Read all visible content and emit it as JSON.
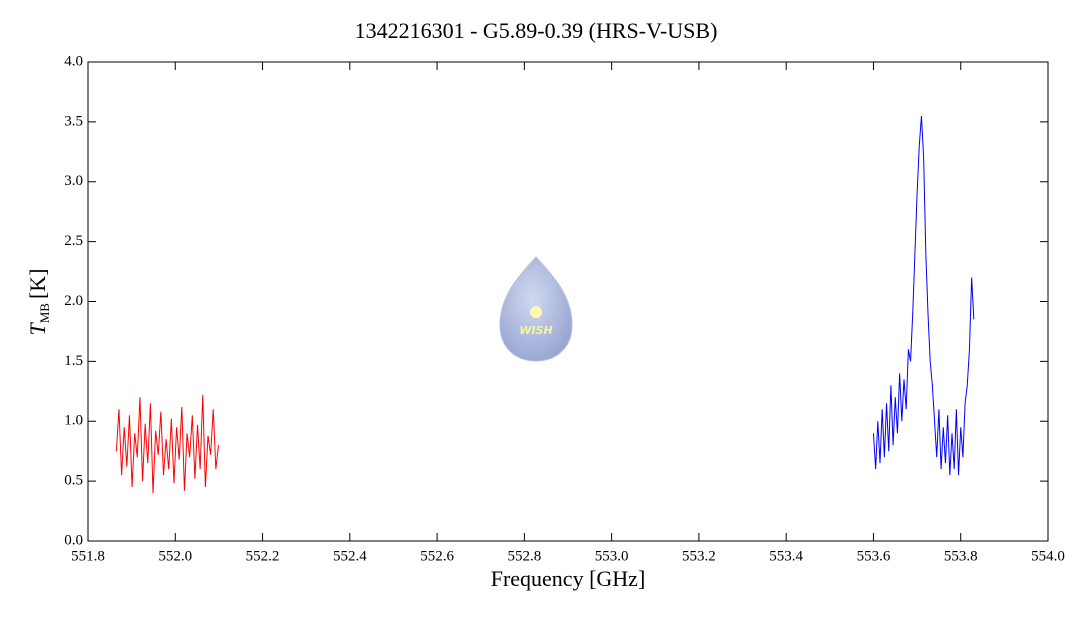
{
  "chart_data": {
    "type": "line",
    "title": "1342216301 - G5.89-0.39 (HRS-V-USB)",
    "xlabel": "Frequency [GHz]",
    "ylabel": {
      "symbol": "T",
      "sub": "MB",
      "unit": "[K]"
    },
    "logo_text": "WISH",
    "xlim": [
      551.8,
      554.0
    ],
    "ylim": [
      0,
      4
    ],
    "xticks": [
      551.8,
      {
        "value": 552,
        "label": "552.0"
      },
      552.2,
      552.4,
      552.6,
      552.8,
      {
        "value": 553,
        "label": "553.0"
      },
      553.2,
      553.4,
      553.6,
      553.8,
      {
        "value": 554,
        "label": "554.0"
      }
    ],
    "yticks": [
      {
        "value": 0,
        "label": "0.0"
      },
      0.5,
      {
        "value": 1,
        "label": "1.0"
      },
      1.5,
      {
        "value": 2,
        "label": "2.0"
      },
      2.5,
      {
        "value": 3,
        "label": "3.0"
      },
      3.5,
      {
        "value": 4,
        "label": "4.0"
      }
    ],
    "series": [
      {
        "color": "#ff0000",
        "x": [
          551.865,
          551.871,
          551.877,
          551.883,
          551.889,
          551.895,
          551.901,
          551.907,
          551.913,
          551.919,
          551.925,
          551.931,
          551.937,
          551.943,
          551.949,
          551.955,
          551.961,
          551.967,
          551.973,
          551.979,
          551.985,
          551.991,
          551.997,
          552.003,
          552.009,
          552.015,
          552.021,
          552.027,
          552.033,
          552.039,
          552.045,
          552.051,
          552.057,
          552.063,
          552.069,
          552.075,
          552.081,
          552.087,
          552.093,
          552.099
        ],
        "values": [
          0.75,
          1.1,
          0.55,
          0.95,
          0.62,
          1.05,
          0.45,
          0.9,
          0.7,
          1.2,
          0.5,
          0.98,
          0.65,
          1.15,
          0.4,
          0.92,
          0.72,
          1.08,
          0.55,
          0.85,
          0.6,
          1.02,
          0.48,
          0.95,
          0.68,
          1.12,
          0.42,
          0.9,
          0.7,
          1.05,
          0.52,
          0.97,
          0.6,
          1.22,
          0.45,
          0.88,
          0.72,
          1.1,
          0.6,
          0.8
        ]
      },
      {
        "color": "#0000ff",
        "x": [
          553.6,
          553.605,
          553.61,
          553.615,
          553.62,
          553.625,
          553.63,
          553.635,
          553.64,
          553.645,
          553.65,
          553.655,
          553.66,
          553.665,
          553.67,
          553.675,
          553.68,
          553.685,
          553.69,
          553.695,
          553.7,
          553.705,
          553.71,
          553.715,
          553.72,
          553.725,
          553.73,
          553.735,
          553.74,
          553.745,
          553.75,
          553.755,
          553.76,
          553.765,
          553.77,
          553.775,
          553.78,
          553.785,
          553.79,
          553.795,
          553.8,
          553.805,
          553.81,
          553.815,
          553.82,
          553.825,
          553.83
        ],
        "values": [
          0.9,
          0.6,
          1.0,
          0.65,
          1.1,
          0.7,
          1.15,
          0.75,
          1.3,
          0.8,
          1.2,
          0.9,
          1.4,
          1.0,
          1.35,
          1.1,
          1.6,
          1.5,
          1.9,
          2.4,
          2.9,
          3.3,
          3.55,
          3.2,
          2.4,
          1.9,
          1.5,
          1.3,
          1.0,
          0.7,
          1.1,
          0.6,
          0.95,
          0.65,
          1.05,
          0.55,
          0.9,
          0.6,
          1.1,
          0.55,
          0.95,
          0.7,
          1.15,
          1.3,
          1.6,
          2.2,
          1.85
        ]
      }
    ]
  }
}
